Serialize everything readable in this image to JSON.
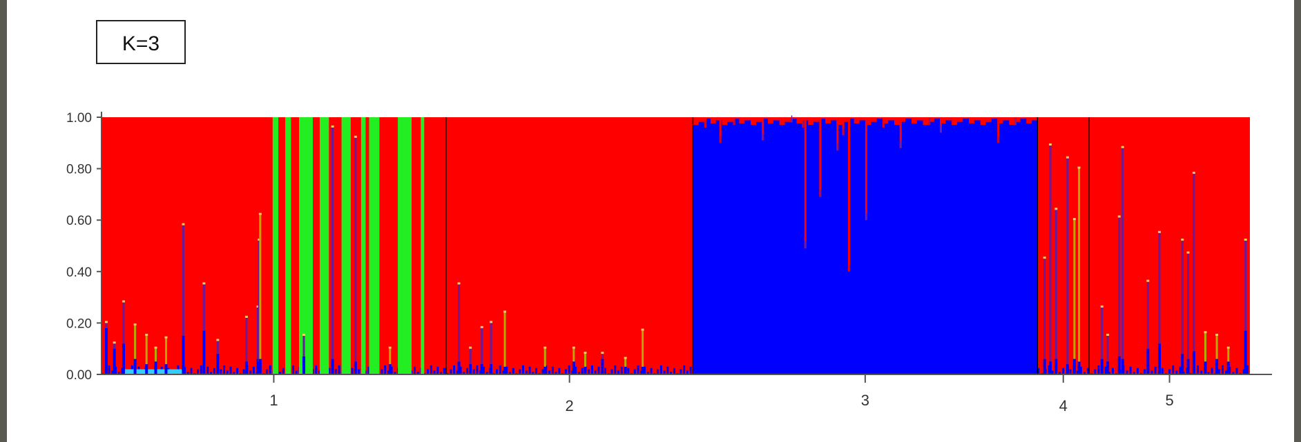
{
  "chart_data": {
    "type": "bar",
    "subtype": "stacked-admixture",
    "annotation": "K=3",
    "ylim": [
      0,
      1
    ],
    "yticks": [
      "0.00",
      "0.20",
      "0.40",
      "0.60",
      "0.80",
      "1.00"
    ],
    "groups": [
      "1",
      "2",
      "3",
      "4",
      "5"
    ],
    "group_ranges": [
      [
        0,
        0.3
      ],
      [
        0.3,
        0.515
      ],
      [
        0.515,
        0.815
      ],
      [
        0.815,
        0.86
      ],
      [
        0.86,
        1.0
      ]
    ],
    "legend": "none",
    "grid": false,
    "colors": {
      "cluster_red": "#ff0000",
      "cluster_blue": "#0000ff",
      "cluster_green": "#22ee22",
      "purple": "#6a1a9a",
      "olive": "#b8a800",
      "cyan": "#33ccff",
      "axis": "#555555",
      "divider": "#000000"
    },
    "spikes": [
      {
        "x": 0.003,
        "blue": 0.18,
        "purple": 0.2,
        "color": "purple"
      },
      {
        "x": 0.01,
        "blue": 0.1,
        "purple": 0.12,
        "color": "purple"
      },
      {
        "x": 0.018,
        "blue": 0.12,
        "purple": 0.28,
        "color": "purple"
      },
      {
        "x": 0.028,
        "blue": 0.06,
        "purple": 0.19,
        "color": "olive"
      },
      {
        "x": 0.038,
        "blue": 0.04,
        "purple": 0.15,
        "color": "olive"
      },
      {
        "x": 0.046,
        "blue": 0.05,
        "purple": 0.1,
        "color": "olive"
      },
      {
        "x": 0.055,
        "blue": 0.04,
        "purple": 0.14,
        "color": "olive"
      },
      {
        "x": 0.07,
        "blue": 0.15,
        "purple": 0.58,
        "color": "purple"
      },
      {
        "x": 0.088,
        "blue": 0.17,
        "purple": 0.35,
        "color": "purple"
      },
      {
        "x": 0.1,
        "blue": 0.08,
        "purple": 0.13,
        "color": "purple"
      },
      {
        "x": 0.125,
        "blue": 0.05,
        "purple": 0.22,
        "color": "purple"
      },
      {
        "x": 0.135,
        "blue": 0.06,
        "purple": 0.26,
        "color": "purple"
      },
      {
        "x": 0.136,
        "blue": 0.05,
        "purple": 0.52,
        "color": "purple"
      },
      {
        "x": 0.137,
        "blue": 0.06,
        "purple": 0.62,
        "color": "olive"
      },
      {
        "x": 0.175,
        "blue": 0.07,
        "purple": 0.15,
        "color": "purple"
      },
      {
        "x": 0.2,
        "blue": 0.06,
        "purple": 0.96,
        "color": "purple"
      },
      {
        "x": 0.22,
        "blue": 0.05,
        "purple": 0.92,
        "color": "purple"
      },
      {
        "x": 0.25,
        "blue": 0.04,
        "purple": 0.1,
        "color": "olive"
      },
      {
        "x": 0.31,
        "blue": 0.05,
        "purple": 0.35,
        "color": "purple"
      },
      {
        "x": 0.32,
        "blue": 0.04,
        "purple": 0.1,
        "color": "purple"
      },
      {
        "x": 0.33,
        "blue": 0.04,
        "purple": 0.18,
        "color": "purple"
      },
      {
        "x": 0.338,
        "blue": 0.04,
        "purple": 0.2,
        "color": "purple"
      },
      {
        "x": 0.35,
        "blue": 0.03,
        "purple": 0.24,
        "color": "olive"
      },
      {
        "x": 0.385,
        "blue": 0.03,
        "purple": 0.1,
        "color": "olive"
      },
      {
        "x": 0.41,
        "blue": 0.05,
        "purple": 0.1,
        "color": "olive"
      },
      {
        "x": 0.42,
        "blue": 0.03,
        "purple": 0.08,
        "color": "olive"
      },
      {
        "x": 0.435,
        "blue": 0.06,
        "purple": 0.08,
        "color": "purple"
      },
      {
        "x": 0.455,
        "blue": 0.03,
        "purple": 0.06,
        "color": "olive"
      },
      {
        "x": 0.47,
        "blue": 0.03,
        "purple": 0.17,
        "color": "olive"
      },
      {
        "x": 0.82,
        "blue": 0.06,
        "purple": 0.45,
        "color": "purple"
      },
      {
        "x": 0.825,
        "blue": 0.05,
        "purple": 0.89,
        "color": "purple"
      },
      {
        "x": 0.83,
        "blue": 0.06,
        "purple": 0.64,
        "color": "purple"
      },
      {
        "x": 0.84,
        "blue": 0.04,
        "purple": 0.84,
        "color": "purple"
      },
      {
        "x": 0.846,
        "blue": 0.06,
        "purple": 0.6,
        "color": "olive"
      },
      {
        "x": 0.85,
        "blue": 0.05,
        "purple": 0.8,
        "color": "olive"
      },
      {
        "x": 0.87,
        "blue": 0.06,
        "purple": 0.26,
        "color": "purple"
      },
      {
        "x": 0.875,
        "blue": 0.05,
        "purple": 0.15,
        "color": "purple"
      },
      {
        "x": 0.885,
        "blue": 0.07,
        "purple": 0.61,
        "color": "purple"
      },
      {
        "x": 0.888,
        "blue": 0.06,
        "purple": 0.88,
        "color": "purple"
      },
      {
        "x": 0.91,
        "blue": 0.1,
        "purple": 0.36,
        "color": "purple"
      },
      {
        "x": 0.92,
        "blue": 0.12,
        "purple": 0.55,
        "color": "purple"
      },
      {
        "x": 0.94,
        "blue": 0.08,
        "purple": 0.52,
        "color": "purple"
      },
      {
        "x": 0.945,
        "blue": 0.06,
        "purple": 0.47,
        "color": "purple"
      },
      {
        "x": 0.95,
        "blue": 0.09,
        "purple": 0.78,
        "color": "purple"
      },
      {
        "x": 0.96,
        "blue": 0.05,
        "purple": 0.16,
        "color": "olive"
      },
      {
        "x": 0.97,
        "blue": 0.06,
        "purple": 0.15,
        "color": "olive"
      },
      {
        "x": 0.98,
        "blue": 0.05,
        "purple": 0.1,
        "color": "olive"
      },
      {
        "x": 0.995,
        "blue": 0.17,
        "purple": 0.52,
        "color": "purple"
      }
    ],
    "green_bars": [
      {
        "x": 0.149,
        "width": 0.005,
        "height": 1.0
      },
      {
        "x": 0.16,
        "width": 0.005,
        "height": 1.0
      },
      {
        "x": 0.172,
        "width": 0.012,
        "height": 1.0
      },
      {
        "x": 0.19,
        "width": 0.008,
        "height": 1.0
      },
      {
        "x": 0.209,
        "width": 0.008,
        "height": 1.0
      },
      {
        "x": 0.226,
        "width": 0.004,
        "height": 1.0
      },
      {
        "x": 0.233,
        "width": 0.009,
        "height": 1.0
      },
      {
        "x": 0.258,
        "width": 0.012,
        "height": 1.0
      },
      {
        "x": 0.278,
        "width": 0.003,
        "height": 1.0
      }
    ],
    "blue_dips": [
      {
        "x": 0.525,
        "depth": 0.04
      },
      {
        "x": 0.538,
        "depth": 0.1
      },
      {
        "x": 0.55,
        "depth": 0.03
      },
      {
        "x": 0.575,
        "depth": 0.09
      },
      {
        "x": 0.6,
        "depth": 0.02
      },
      {
        "x": 0.61,
        "depth": 0.04
      },
      {
        "x": 0.612,
        "depth": 0.51
      },
      {
        "x": 0.625,
        "depth": 0.31
      },
      {
        "x": 0.64,
        "depth": 0.13
      },
      {
        "x": 0.645,
        "depth": 0.07
      },
      {
        "x": 0.65,
        "depth": 0.6
      },
      {
        "x": 0.665,
        "depth": 0.4
      },
      {
        "x": 0.68,
        "depth": 0.04
      },
      {
        "x": 0.695,
        "depth": 0.12
      },
      {
        "x": 0.72,
        "depth": 0.03
      },
      {
        "x": 0.73,
        "depth": 0.06
      },
      {
        "x": 0.78,
        "depth": 0.1
      },
      {
        "x": 0.795,
        "depth": 0.03
      }
    ]
  }
}
